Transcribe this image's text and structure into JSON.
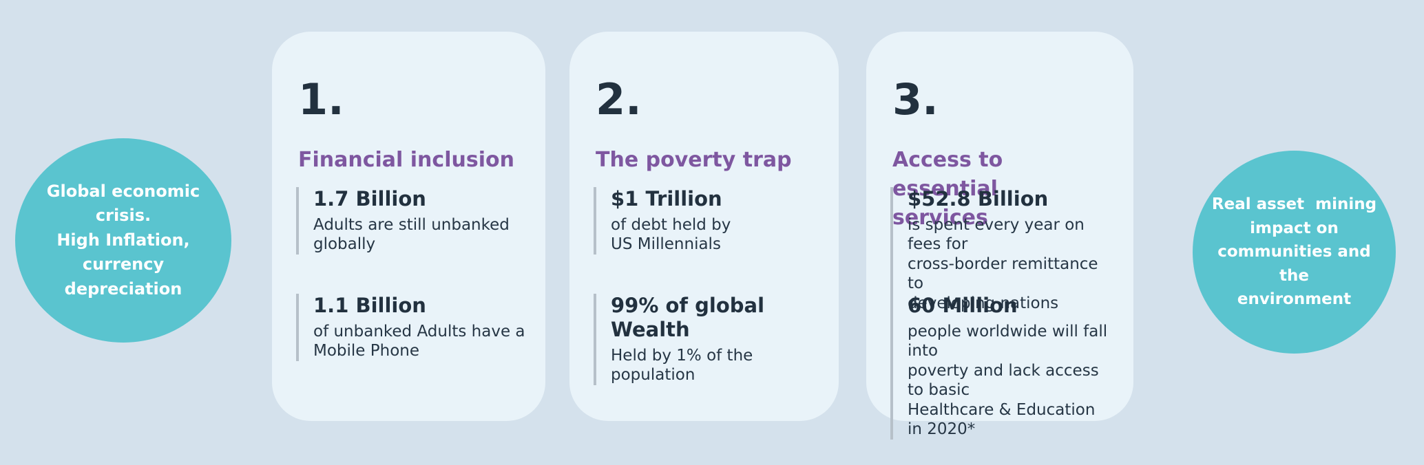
{
  "colors": {
    "background": "#d4e1ec",
    "card_background": "#e9f3f9",
    "circle_teal": "#5ac4cf",
    "accent_purple": "#7e57a0",
    "text_dark": "#22313f",
    "stat_bar_gray": "#b6c0c9",
    "circle_text": "#ffffff"
  },
  "left_circle": {
    "text": "Global economic\ncrisis.\nHigh Inflation,\ncurrency\ndepreciation"
  },
  "right_circle": {
    "text": "Real asset  mining\nimpact on\ncommunities and the\nenvironment"
  },
  "cards": [
    {
      "number": "1.",
      "title": "Financial inclusion",
      "stats": [
        {
          "value": "1.7 Billion",
          "desc": "Adults are still unbanked\nglobally"
        },
        {
          "value": "1.1 Billion",
          "desc": "of unbanked Adults have a\nMobile Phone"
        }
      ]
    },
    {
      "number": "2.",
      "title": "The poverty trap",
      "stats": [
        {
          "value": "$1 Trillion",
          "desc": "of debt held by\nUS Millennials"
        },
        {
          "value": "99% of global Wealth",
          "desc": "Held by 1% of the\npopulation"
        }
      ]
    },
    {
      "number": "3.",
      "title": "Access to essential\nservices",
      "stats": [
        {
          "value": "$52.8 Billion",
          "desc": "is spent every year on fees for\ncross-border remittance to\ndeveloping nations"
        },
        {
          "value": "60 Million",
          "desc": "people worldwide will fall into\npoverty and lack access to basic\nHealthcare & Education in 2020*"
        }
      ]
    }
  ]
}
